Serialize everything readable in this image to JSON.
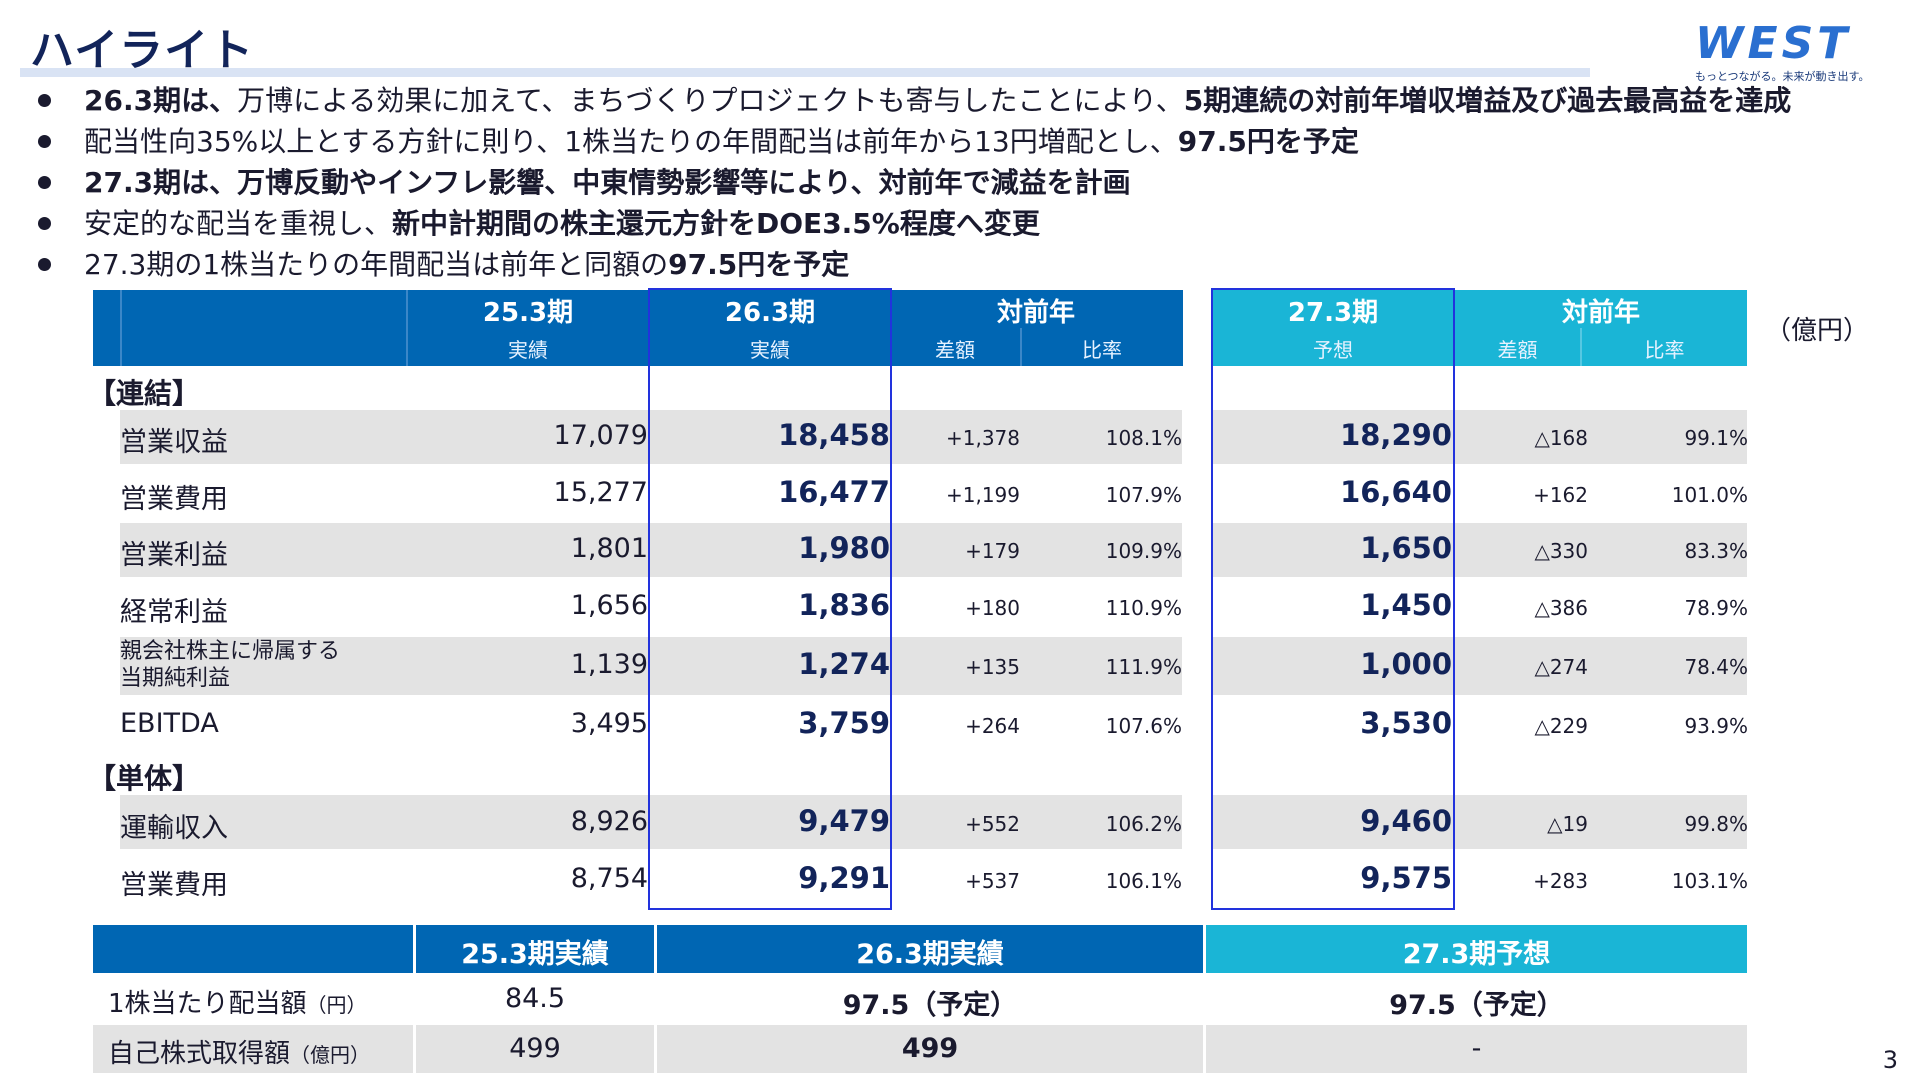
{
  "title": "ハイライト",
  "logo": {
    "text": "WEST",
    "tagline": "もっとつながる。未来が動き出す。"
  },
  "bullets": [
    {
      "bold_lead": "26.3期は、",
      "text": "万博による効果に加えて、まちづくりプロジェクトも寄与したことにより、",
      "bold_tail": "5期連続の対前年増収増益及び過去最高益を達成"
    },
    {
      "text": "配当性向35%以上とする方針に則り、1株当たりの年間配当は前年から13円増配とし、",
      "bold_tail": "97.5円を予定"
    },
    {
      "bold_lead": "27.3期は、万博反動やインフレ影響、中東情勢影響等により、対前年で減益を計画"
    },
    {
      "text": "安定的な配当を重視し、",
      "bold_tail": "新中計期間の株主還元方針をDOE3.5%程度へ変更"
    },
    {
      "text": "27.3期の1株当たりの年間配当は前年と同額の",
      "bold_tail": "97.5円を予定"
    }
  ],
  "unit": "（億円）",
  "table": {
    "headers": {
      "prev_period": "25.3期",
      "prev_sub": "実績",
      "cur_period": "26.3期",
      "cur_sub": "実績",
      "yoy": "対前年",
      "diff": "差額",
      "rate": "比率",
      "fc_period": "27.3期",
      "fc_sub": "予想",
      "fc_yoy": "対前年",
      "fc_diff": "差額",
      "fc_rate": "比率"
    },
    "sections": [
      {
        "label": "【連結】"
      },
      {
        "label": "【単体】"
      }
    ],
    "rows": [
      {
        "label": "営業収益",
        "prev": "17,079",
        "cur": "18,458",
        "diff": "+1,378",
        "rate": "108.1%",
        "fc": "18,290",
        "fc_diff": "△168",
        "fc_rate": "99.1%"
      },
      {
        "label": "営業費用",
        "prev": "15,277",
        "cur": "16,477",
        "diff": "+1,199",
        "rate": "107.9%",
        "fc": "16,640",
        "fc_diff": "+162",
        "fc_rate": "101.0%"
      },
      {
        "label": "営業利益",
        "prev": "1,801",
        "cur": "1,980",
        "diff": "+179",
        "rate": "109.9%",
        "fc": "1,650",
        "fc_diff": "△330",
        "fc_rate": "83.3%"
      },
      {
        "label": "経常利益",
        "prev": "1,656",
        "cur": "1,836",
        "diff": "+180",
        "rate": "110.9%",
        "fc": "1,450",
        "fc_diff": "△386",
        "fc_rate": "78.9%"
      },
      {
        "label_line1": "親会社株主に帰属する",
        "label_line2": "当期純利益",
        "prev": "1,139",
        "cur": "1,274",
        "diff": "+135",
        "rate": "111.9%",
        "fc": "1,000",
        "fc_diff": "△274",
        "fc_rate": "78.4%"
      },
      {
        "label": "EBITDA",
        "prev": "3,495",
        "cur": "3,759",
        "diff": "+264",
        "rate": "107.6%",
        "fc": "3,530",
        "fc_diff": "△229",
        "fc_rate": "93.9%"
      },
      {
        "label": "運輸収入",
        "prev": "8,926",
        "cur": "9,479",
        "diff": "+552",
        "rate": "106.2%",
        "fc": "9,460",
        "fc_diff": "△19",
        "fc_rate": "99.8%"
      },
      {
        "label": "営業費用",
        "prev": "8,754",
        "cur": "9,291",
        "diff": "+537",
        "rate": "106.1%",
        "fc": "9,575",
        "fc_diff": "+283",
        "fc_rate": "103.1%"
      }
    ]
  },
  "dividend": {
    "headers": [
      "25.3期実績",
      "26.3期実績",
      "27.3期予想"
    ],
    "rows": [
      {
        "label": "1株当たり配当額",
        "unit": "（円）",
        "v1": "84.5",
        "v2": "97.5（予定）",
        "v3": "97.5（予定）"
      },
      {
        "label": "自己株式取得額",
        "unit": "（億円）",
        "v1": "499",
        "v2": "499",
        "v3": "-"
      }
    ]
  },
  "page_number": "3",
  "colors": {
    "header_blue": "#0066b3",
    "header_cyan": "#1ab5d6",
    "highlight_box": "#2233dd",
    "row_gray": "#e3e3e3",
    "title_navy": "#12245a"
  }
}
